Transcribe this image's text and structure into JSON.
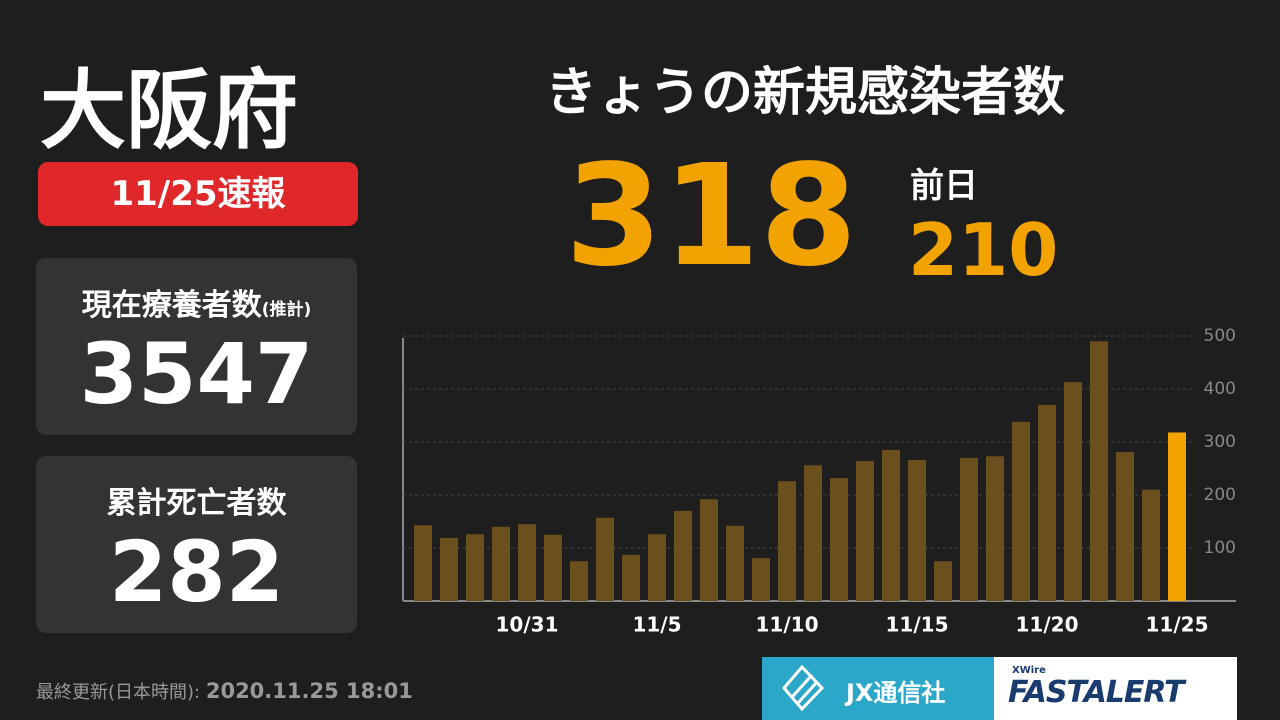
{
  "region": "大阪府",
  "badge": "11/25速報",
  "cards": [
    {
      "label": "現在療養者数",
      "note": "(推計)",
      "value": 3547
    },
    {
      "label": "累計死亡者数",
      "value": 282
    }
  ],
  "headline": "きょうの新規感染者数",
  "today": 318,
  "prev_label": "前日",
  "prev": 210,
  "footer": {
    "updated_label": "最終更新(日本時間):",
    "updated": "2020.11.25 18:01"
  },
  "logos": {
    "jx": "JX通信社",
    "xwire": "XWire",
    "fastalert": "FASTALERT"
  },
  "chart_data": {
    "type": "bar",
    "categories": [
      null,
      null,
      null,
      null,
      "10/31",
      null,
      null,
      null,
      null,
      "11/5",
      null,
      null,
      null,
      null,
      "11/10",
      null,
      null,
      null,
      null,
      "11/15",
      null,
      null,
      null,
      null,
      "11/20",
      null,
      null,
      null,
      null,
      "11/25"
    ],
    "values": [
      143,
      119,
      126,
      140,
      145,
      125,
      75,
      157,
      87,
      126,
      170,
      192,
      142,
      81,
      226,
      256,
      232,
      264,
      285,
      266,
      75,
      270,
      273,
      338,
      370,
      413,
      490,
      281,
      210,
      318
    ],
    "colors": [
      "#6b4f1d",
      "#6b4f1d",
      "#6b4f1d",
      "#6b4f1d",
      "#6b4f1d",
      "#6b4f1d",
      "#6b4f1d",
      "#6b4f1d",
      "#6b4f1d",
      "#6b4f1d",
      "#6b4f1d",
      "#6b4f1d",
      "#6b4f1d",
      "#6b4f1d",
      "#6b4f1d",
      "#6b4f1d",
      "#6b4f1d",
      "#6b4f1d",
      "#6b4f1d",
      "#6b4f1d",
      "#6b4f1d",
      "#6b4f1d",
      "#6b4f1d",
      "#6b4f1d",
      "#6b4f1d",
      "#6b4f1d",
      "#6b4f1d",
      "#6b4f1d",
      "#6b4f1d",
      "#f2a300"
    ],
    "ylim": [
      0,
      500
    ],
    "yticks": [
      100,
      200,
      300,
      400,
      500
    ],
    "grid": true
  }
}
